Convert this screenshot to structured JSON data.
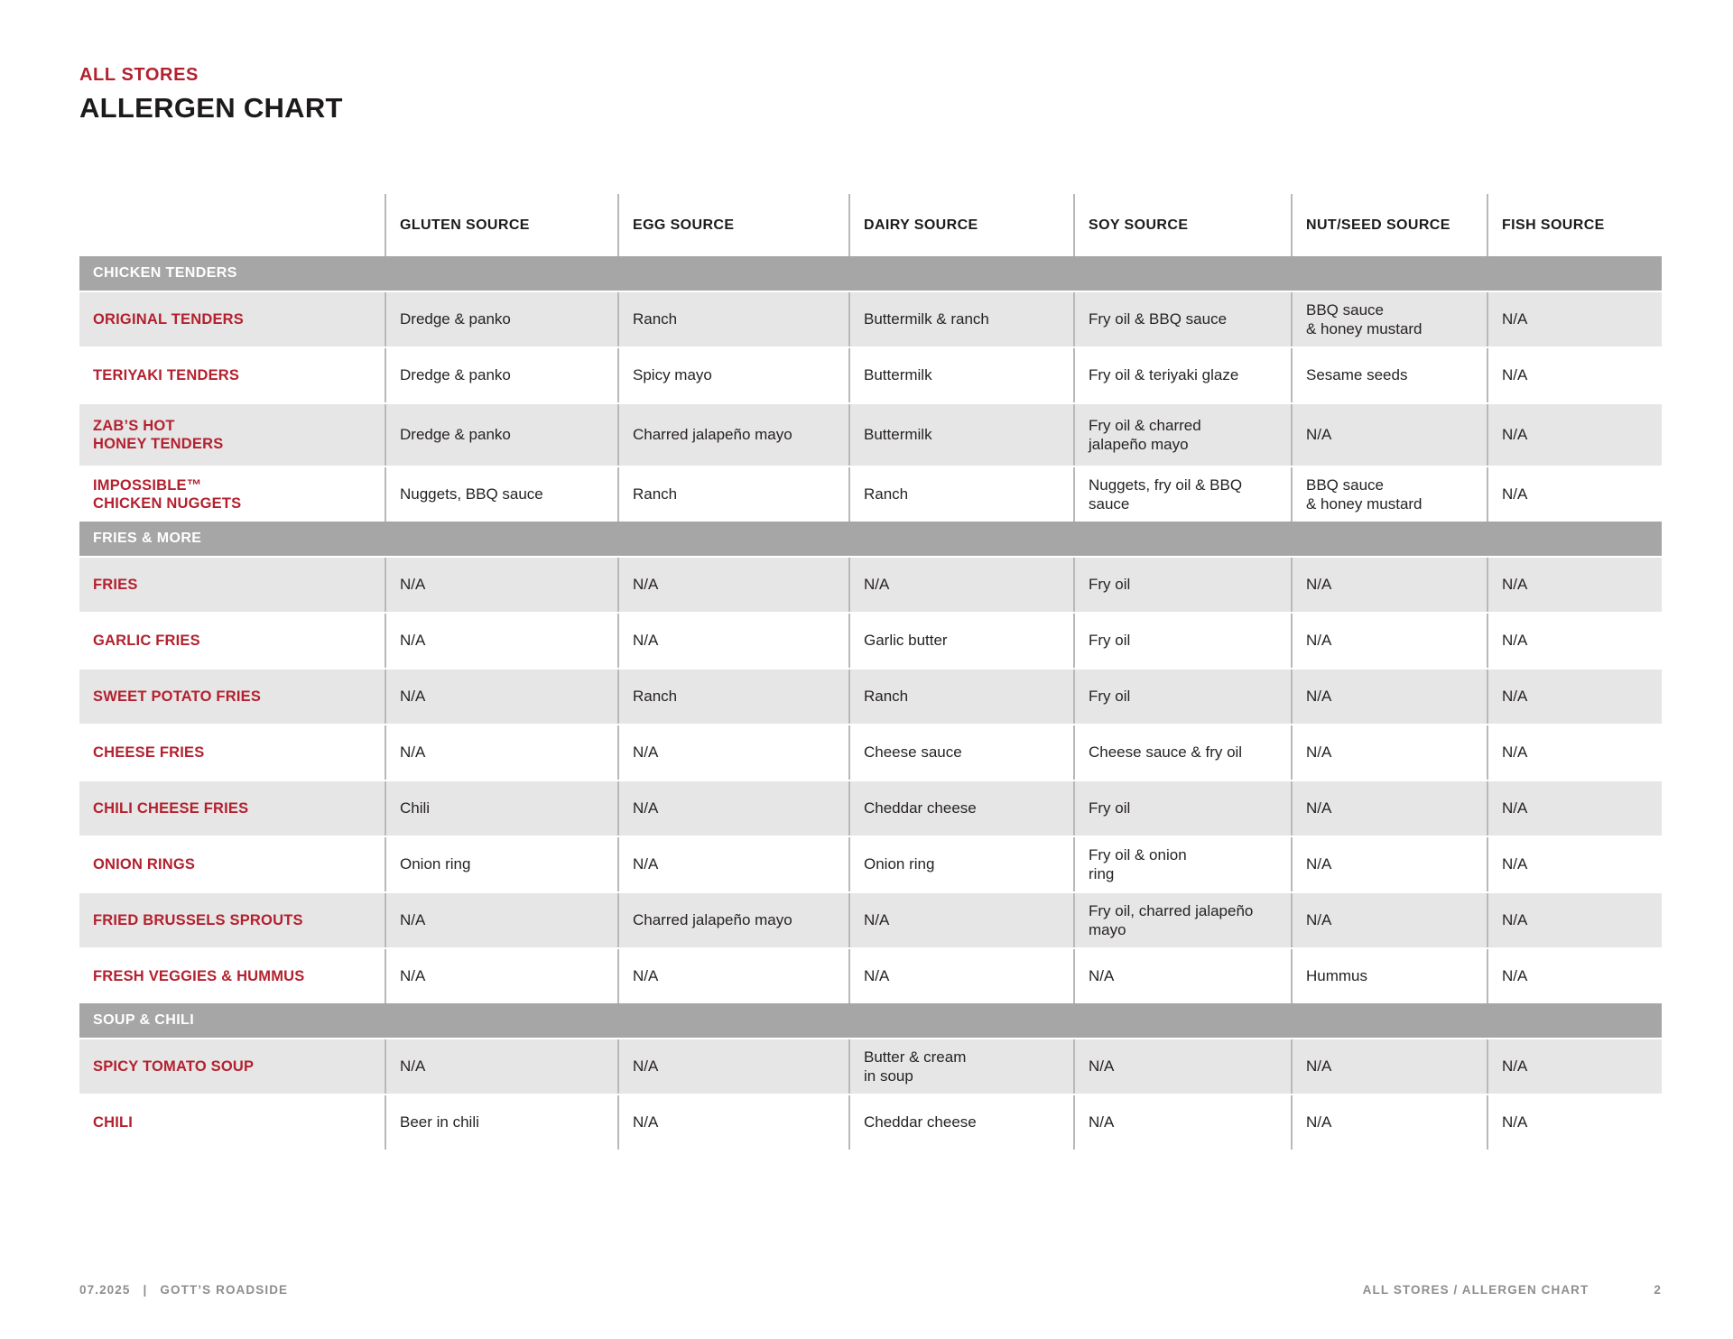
{
  "header": {
    "eyebrow": "ALL STORES",
    "title": "ALLERGEN CHART"
  },
  "colors": {
    "accent_red": "#b3212f",
    "section_bar_gray": "#a6a6a6",
    "row_shade_gray": "#e7e6e6",
    "footer_gray": "#8e8e8e"
  },
  "table": {
    "columns": [
      "GLUTEN SOURCE",
      "EGG SOURCE",
      "DAIRY SOURCE",
      "SOY SOURCE",
      "NUT/SEED SOURCE",
      "FISH SOURCE"
    ],
    "sections": [
      {
        "label": "CHICKEN TENDERS",
        "rows": [
          {
            "item": "ORIGINAL TENDERS",
            "cells": [
              "Dredge & panko",
              "Ranch",
              "Buttermilk & ranch",
              "Fry oil & BBQ sauce",
              "BBQ sauce\n& honey mustard",
              "N/A"
            ]
          },
          {
            "item": "TERIYAKI TENDERS",
            "cells": [
              "Dredge & panko",
              "Spicy mayo",
              "Buttermilk",
              "Fry oil & teriyaki glaze",
              "Sesame seeds",
              "N/A"
            ]
          },
          {
            "item": "ZAB’S HOT\nHONEY TENDERS",
            "cells": [
              "Dredge & panko",
              "Charred jalapeño mayo",
              "Buttermilk",
              "Fry oil & charred\njalapeño mayo",
              "N/A",
              "N/A"
            ]
          },
          {
            "item": "IMPOSSIBLE™\nCHICKEN NUGGETS",
            "cells": [
              "Nuggets, BBQ sauce",
              "Ranch",
              "Ranch",
              "Nuggets, fry oil & BBQ\nsauce",
              "BBQ sauce\n& honey mustard",
              "N/A"
            ]
          }
        ]
      },
      {
        "label": "FRIES & MORE",
        "rows": [
          {
            "item": "FRIES",
            "cells": [
              "N/A",
              "N/A",
              "N/A",
              "Fry oil",
              "N/A",
              "N/A"
            ]
          },
          {
            "item": "GARLIC FRIES",
            "cells": [
              "N/A",
              "N/A",
              "Garlic butter",
              "Fry oil",
              "N/A",
              "N/A"
            ]
          },
          {
            "item": "SWEET POTATO FRIES",
            "cells": [
              "N/A",
              "Ranch",
              "Ranch",
              "Fry oil",
              "N/A",
              "N/A"
            ]
          },
          {
            "item": "CHEESE FRIES",
            "cells": [
              "N/A",
              "N/A",
              "Cheese sauce",
              "Cheese sauce & fry oil",
              "N/A",
              "N/A"
            ]
          },
          {
            "item": "CHILI CHEESE FRIES",
            "cells": [
              "Chili",
              "N/A",
              "Cheddar cheese",
              "Fry oil",
              "N/A",
              "N/A"
            ]
          },
          {
            "item": "ONION RINGS",
            "cells": [
              "Onion ring",
              "N/A",
              "Onion ring",
              "Fry oil & onion\nring",
              "N/A",
              "N/A"
            ]
          },
          {
            "item": "FRIED BRUSSELS SPROUTS",
            "cells": [
              "N/A",
              "Charred jalapeño mayo",
              "N/A",
              "Fry oil, charred jalapeño\nmayo",
              "N/A",
              "N/A"
            ]
          },
          {
            "item": "FRESH VEGGIES & HUMMUS",
            "cells": [
              "N/A",
              "N/A",
              "N/A",
              "N/A",
              "Hummus",
              "N/A"
            ]
          }
        ]
      },
      {
        "label": "SOUP & CHILI",
        "rows": [
          {
            "item": "SPICY TOMATO SOUP",
            "cells": [
              "N/A",
              "N/A",
              "Butter & cream\nin soup",
              "N/A",
              "N/A",
              "N/A"
            ]
          },
          {
            "item": "CHILI",
            "cells": [
              "Beer in chili",
              "N/A",
              "Cheddar cheese",
              "N/A",
              "N/A",
              "N/A"
            ]
          }
        ]
      }
    ]
  },
  "footer": {
    "date": "07.2025",
    "separator": "|",
    "brand": "GOTT’S ROADSIDE",
    "right_title": "ALL STORES / ALLERGEN CHART",
    "page_number": "2"
  }
}
